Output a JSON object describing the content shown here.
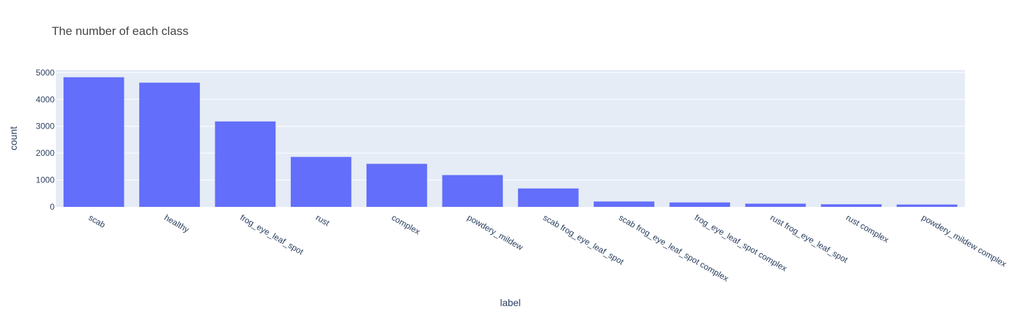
{
  "chart_data": {
    "type": "bar",
    "title": "The number of each class",
    "xlabel": "label",
    "ylabel": "count",
    "categories": [
      "scab",
      "healthy",
      "frog_eye_leaf_spot",
      "rust",
      "complex",
      "powdery_mildew",
      "scab frog_eye_leaf_spot",
      "scab frog_eye_leaf_spot complex",
      "frog_eye_leaf_spot complex",
      "rust frog_eye_leaf_spot",
      "rust complex",
      "powdery_mildew complex"
    ],
    "values": [
      4826,
      4624,
      3181,
      1860,
      1602,
      1184,
      686,
      200,
      165,
      120,
      97,
      87
    ],
    "ylim": [
      0,
      5100
    ],
    "yticks": [
      0,
      1000,
      2000,
      3000,
      4000,
      5000
    ],
    "grid": true,
    "legend": "none"
  },
  "colors": {
    "bar": "#636efa",
    "plot_bg": "#e5ecf6",
    "grid": "#ffffff",
    "text": "#2a3f5f",
    "title_text": "#444444"
  }
}
